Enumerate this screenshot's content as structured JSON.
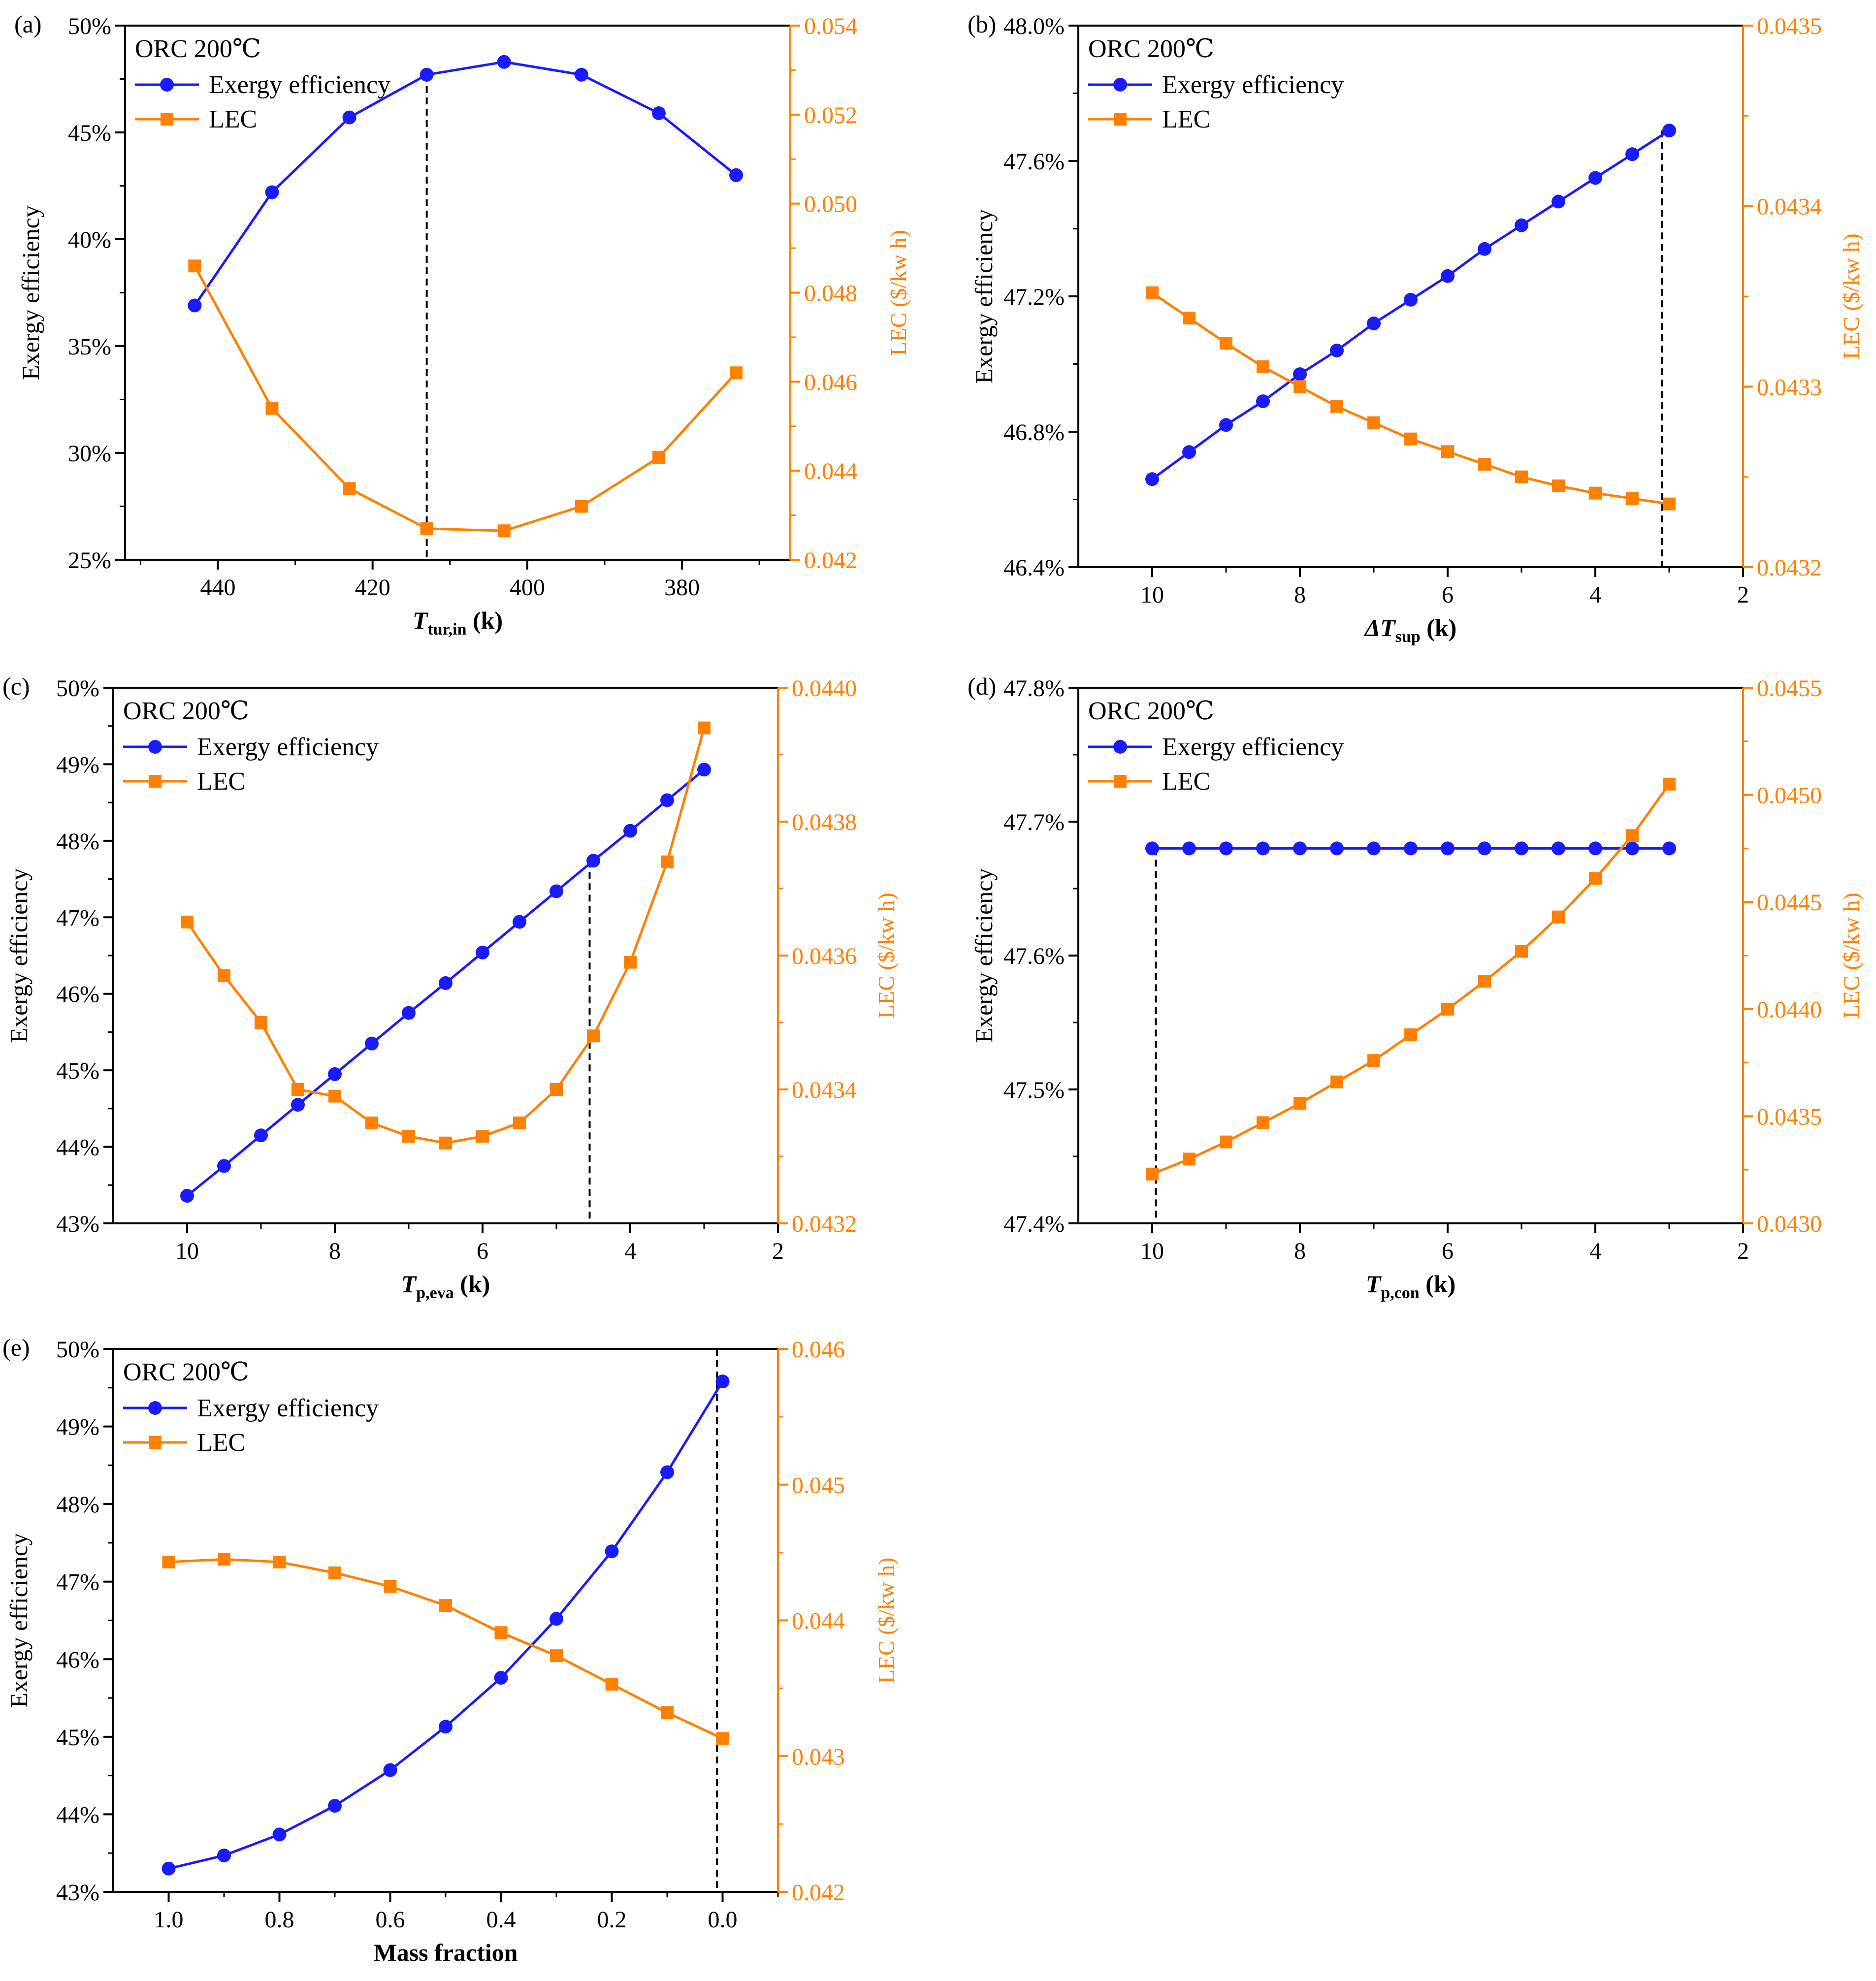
{
  "chart_data": [
    {
      "panel": "(a)",
      "type": "line",
      "legend_title": "ORC 200℃",
      "legend_position": "top-left",
      "x": [
        443,
        433,
        423,
        413,
        403,
        393,
        383,
        373
      ],
      "xlim": [
        452,
        366
      ],
      "xticks": [
        440,
        420,
        400,
        380
      ],
      "xtick_labels": [
        "440",
        "420",
        "400",
        "380"
      ],
      "xlabel": {
        "main": "T",
        "sub": "tur,in",
        "unit": " (k)"
      },
      "ylabel_left": "Exergy efficiency",
      "ylabel_right": "LEC ($/kw  h)",
      "ylim_left": [
        25,
        50
      ],
      "yticks_left": [
        25,
        30,
        35,
        40,
        45,
        50
      ],
      "ytick_labels_left": [
        "25%",
        "30%",
        "35%",
        "40%",
        "45%",
        "50%"
      ],
      "ylim_right": [
        0.042,
        0.054
      ],
      "yticks_right": [
        0.042,
        0.044,
        0.046,
        0.048,
        0.05,
        0.052,
        0.054
      ],
      "ytick_labels_right": [
        "0.042",
        "0.044",
        "0.046",
        "0.048",
        "0.050",
        "0.052",
        "0.054"
      ],
      "series": [
        {
          "name": "Exergy efficiency",
          "axis": "left",
          "color": "#1a1aff",
          "marker": "circle",
          "values": [
            36.9,
            42.2,
            45.7,
            47.7,
            48.3,
            47.7,
            45.9,
            43.0
          ]
        },
        {
          "name": "LEC",
          "axis": "right",
          "color": "#ff8000",
          "marker": "square",
          "values": [
            0.0486,
            0.0454,
            0.0436,
            0.0427,
            0.04265,
            0.0432,
            0.0443,
            0.0462
          ]
        }
      ],
      "vline_x": 413
    },
    {
      "panel": "(b)",
      "type": "line",
      "legend_title": "ORC 200℃",
      "legend_position": "top-left",
      "x": [
        10,
        9.5,
        9,
        8.5,
        8,
        7.5,
        7,
        6.5,
        6,
        5.5,
        5,
        4.5,
        4,
        3.5,
        3
      ],
      "xlim": [
        11,
        2
      ],
      "xticks": [
        10,
        8,
        6,
        4,
        2
      ],
      "xtick_labels": [
        "10",
        "8",
        "6",
        "4",
        "2"
      ],
      "xlabel": {
        "main": "ΔT",
        "sub": "sup",
        "unit": " (k)"
      },
      "ylabel_left": "Exergy efficiency",
      "ylabel_right": "LEC ($/kw  h)",
      "ylim_left": [
        46.4,
        48.0
      ],
      "yticks_left": [
        46.4,
        46.8,
        47.2,
        47.6,
        48.0
      ],
      "ytick_labels_left": [
        "46.4%",
        "46.8%",
        "47.2%",
        "47.6%",
        "48.0%"
      ],
      "ylim_right": [
        0.0432,
        0.0435
      ],
      "yticks_right": [
        0.0432,
        0.0433,
        0.0434,
        0.0435
      ],
      "ytick_labels_right": [
        "0.0432",
        "0.0433",
        "0.0434",
        "0.0435"
      ],
      "series": [
        {
          "name": "Exergy efficiency",
          "axis": "left",
          "color": "#1a1aff",
          "marker": "circle",
          "values": [
            46.66,
            46.74,
            46.82,
            46.89,
            46.97,
            47.04,
            47.12,
            47.19,
            47.26,
            47.34,
            47.41,
            47.48,
            47.55,
            47.62,
            47.69
          ]
        },
        {
          "name": "LEC",
          "axis": "right",
          "color": "#ff8000",
          "marker": "square",
          "values": [
            0.043352,
            0.043338,
            0.043324,
            0.043311,
            0.0433,
            0.043289,
            0.04328,
            0.043271,
            0.043264,
            0.043257,
            0.04325,
            0.043245,
            0.043241,
            0.043238,
            0.043235
          ]
        }
      ],
      "vline_x": 3.1
    },
    {
      "panel": "(c)",
      "type": "line",
      "legend_title": "ORC 200℃",
      "legend_position": "top-left",
      "x": [
        10,
        9.5,
        9,
        8.5,
        8,
        7.5,
        7,
        6.5,
        6,
        5.5,
        5,
        4.5,
        4,
        3.5,
        3
      ],
      "xlim": [
        11,
        2
      ],
      "xticks": [
        10,
        8,
        6,
        4,
        2
      ],
      "xtick_labels": [
        "10",
        "8",
        "6",
        "4",
        "2"
      ],
      "xlabel": {
        "main": "T",
        "sub": "p,eva",
        "unit": " (k)"
      },
      "ylabel_left": "Exergy efficiency",
      "ylabel_right": "LEC ($/kw  h)",
      "ylim_left": [
        43,
        50
      ],
      "yticks_left": [
        43,
        44,
        45,
        46,
        47,
        48,
        49,
        50
      ],
      "ytick_labels_left": [
        "43%",
        "44%",
        "45%",
        "46%",
        "47%",
        "48%",
        "49%",
        "50%"
      ],
      "ylim_right": [
        0.0432,
        0.044
      ],
      "yticks_right": [
        0.0432,
        0.0434,
        0.0436,
        0.0438,
        0.044
      ],
      "ytick_labels_right": [
        "0.0432",
        "0.0434",
        "0.0436",
        "0.0438",
        "0.0440"
      ],
      "series": [
        {
          "name": "Exergy efficiency",
          "axis": "left",
          "color": "#1a1aff",
          "marker": "circle",
          "values": [
            43.36,
            43.75,
            44.15,
            44.55,
            44.95,
            45.35,
            45.75,
            46.14,
            46.54,
            46.94,
            47.34,
            47.74,
            48.13,
            48.53,
            48.93
          ]
        },
        {
          "name": "LEC",
          "axis": "right",
          "color": "#ff8000",
          "marker": "square",
          "values": [
            0.04365,
            0.04357,
            0.0435,
            0.0434,
            0.04339,
            0.04335,
            0.04333,
            0.04332,
            0.04333,
            0.04335,
            0.0434,
            0.04348,
            0.04359,
            0.04374,
            0.04394
          ]
        }
      ],
      "vline_x": 4.55
    },
    {
      "panel": "(d)",
      "type": "line",
      "legend_title": "ORC 200℃",
      "legend_position": "top-left",
      "x": [
        10,
        9.5,
        9,
        8.5,
        8,
        7.5,
        7,
        6.5,
        6,
        5.5,
        5,
        4.5,
        4,
        3.5,
        3
      ],
      "xlim": [
        11,
        2
      ],
      "xticks": [
        10,
        8,
        6,
        4,
        2
      ],
      "xtick_labels": [
        "10",
        "8",
        "6",
        "4",
        "2"
      ],
      "xlabel": {
        "main": "T",
        "sub": "p,con",
        "unit": " (k)"
      },
      "ylabel_left": "Exergy efficiency",
      "ylabel_right": "LEC ($/kw  h)",
      "ylim_left": [
        47.4,
        47.8
      ],
      "yticks_left": [
        47.4,
        47.5,
        47.6,
        47.7,
        47.8
      ],
      "ytick_labels_left": [
        "47.4%",
        "47.5%",
        "47.6%",
        "47.7%",
        "47.8%"
      ],
      "ylim_right": [
        0.043,
        0.0455
      ],
      "yticks_right": [
        0.043,
        0.0435,
        0.044,
        0.0445,
        0.045,
        0.0455
      ],
      "ytick_labels_right": [
        "0.0430",
        "0.0435",
        "0.0440",
        "0.0445",
        "0.0450",
        "0.0455"
      ],
      "series": [
        {
          "name": "Exergy efficiency",
          "axis": "left",
          "color": "#1a1aff",
          "marker": "circle",
          "values": [
            47.68,
            47.68,
            47.68,
            47.68,
            47.68,
            47.68,
            47.68,
            47.68,
            47.68,
            47.68,
            47.68,
            47.68,
            47.68,
            47.68,
            47.68
          ]
        },
        {
          "name": "LEC",
          "axis": "right",
          "color": "#ff8000",
          "marker": "square",
          "values": [
            0.04323,
            0.0433,
            0.04338,
            0.04347,
            0.04356,
            0.04366,
            0.04376,
            0.04388,
            0.044,
            0.04413,
            0.04427,
            0.04443,
            0.04461,
            0.04481,
            0.04505
          ]
        }
      ],
      "vline_x": 9.95
    },
    {
      "panel": "(e)",
      "type": "line",
      "legend_title": "ORC 200℃",
      "legend_position": "top-left",
      "x": [
        1.0,
        0.9,
        0.8,
        0.7,
        0.6,
        0.5,
        0.4,
        0.3,
        0.2,
        0.1,
        0.0
      ],
      "xlim": [
        1.1,
        -0.1
      ],
      "xticks": [
        1.0,
        0.8,
        0.6,
        0.4,
        0.2,
        0.0
      ],
      "xtick_labels": [
        "1.0",
        "0.8",
        "0.6",
        "0.4",
        "0.2",
        "0.0"
      ],
      "xlabel": {
        "main": "Mass fraction",
        "sub": "",
        "unit": ""
      },
      "ylabel_left": "Exergy efficiency",
      "ylabel_right": "LEC ($/kw  h)",
      "ylim_left": [
        43,
        50
      ],
      "yticks_left": [
        43,
        44,
        45,
        46,
        47,
        48,
        49,
        50
      ],
      "ytick_labels_left": [
        "43%",
        "44%",
        "45%",
        "46%",
        "47%",
        "48%",
        "49%",
        "50%"
      ],
      "ylim_right": [
        0.042,
        0.046
      ],
      "yticks_right": [
        0.042,
        0.043,
        0.044,
        0.045,
        0.046
      ],
      "ytick_labels_right": [
        "0.042",
        "0.043",
        "0.044",
        "0.045",
        "0.046"
      ],
      "series": [
        {
          "name": "Exergy efficiency",
          "axis": "left",
          "color": "#1a1aff",
          "marker": "circle",
          "values": [
            43.3,
            43.47,
            43.74,
            44.11,
            44.57,
            45.13,
            45.76,
            46.52,
            47.39,
            48.41,
            49.58
          ]
        },
        {
          "name": "LEC",
          "axis": "right",
          "color": "#ff8000",
          "marker": "square",
          "values": [
            0.04443,
            0.04445,
            0.04443,
            0.04435,
            0.04425,
            0.04411,
            0.04391,
            0.04374,
            0.04353,
            0.04332,
            0.04313
          ]
        }
      ],
      "vline_x": 0.01
    }
  ]
}
